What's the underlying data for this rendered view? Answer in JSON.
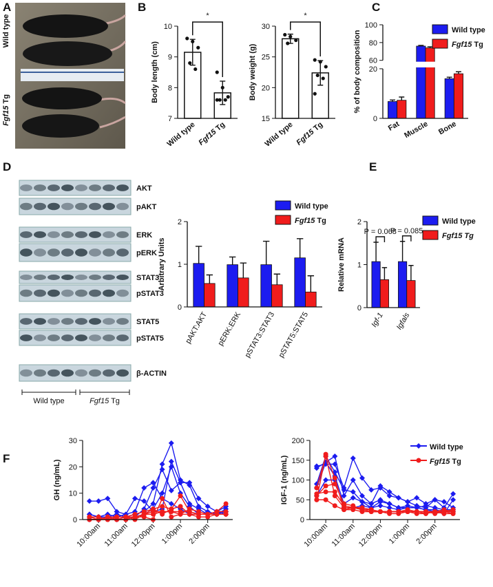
{
  "panels": [
    "A",
    "B",
    "C",
    "D",
    "E",
    "F"
  ],
  "photo": {
    "labels": [
      "Wild type",
      "Fgf15 Tg"
    ]
  },
  "blot": {
    "labels": [
      "AKT",
      "pAKT",
      "ERK",
      "pERK",
      "STAT3",
      "pSTAT3",
      "STAT5",
      "pSTAT5",
      "β-ACTIN"
    ],
    "groups": [
      "Wild type",
      "Fgf15 Tg"
    ]
  },
  "chart_data": [
    {
      "type": "bar",
      "ylabel": "Body length (cm)",
      "categories": [
        "Wild type",
        "Fgf15 Tg"
      ],
      "values": [
        9.15,
        7.83
      ],
      "errors": [
        0.42,
        0.38
      ],
      "points": [
        [
          9.6,
          9.5,
          9.3,
          8.8,
          8.6
        ],
        [
          8.5,
          8.0,
          7.7,
          7.6,
          7.6,
          7.6
        ]
      ],
      "color": "#ffffff",
      "ylim": [
        7,
        10
      ],
      "yticks": [
        7,
        8,
        9,
        10
      ],
      "significance": "*"
    },
    {
      "type": "bar",
      "ylabel": "Body weight (g)",
      "categories": [
        "Wild type",
        "Fgf15 Tg"
      ],
      "values": [
        27.95,
        22.4
      ],
      "errors": [
        0.75,
        2.0
      ],
      "points": [
        [
          28.6,
          28.3,
          27.7,
          27.2
        ],
        [
          24.5,
          24.2,
          23.4,
          22,
          21.5,
          19
        ]
      ],
      "color": "#ffffff",
      "ylim": [
        15,
        30
      ],
      "yticks": [
        15,
        20,
        25,
        30
      ],
      "significance": "*"
    },
    {
      "type": "bar",
      "ylabel": "% of body composition",
      "categories": [
        "Fat",
        "Muscle",
        "Bone"
      ],
      "series": [
        {
          "name": "Wild type",
          "color": "#1c1cf0",
          "values": [
            6.8,
            76,
            16
          ],
          "errors": [
            0.6,
            0.8,
            0.6
          ]
        },
        {
          "name": "Fgf15 Tg",
          "color": "#f01c1c",
          "values": [
            7.3,
            74,
            18
          ],
          "errors": [
            1.3,
            1.3,
            0.8
          ]
        }
      ],
      "ylim": [
        0,
        100
      ],
      "ybreak": [
        20,
        60
      ],
      "yticks": [
        0,
        20,
        60,
        80,
        100
      ],
      "legend": "top-right"
    },
    {
      "type": "bar",
      "ylabel": "Arbitrary Units",
      "categories": [
        "pAKT:AKT",
        "pERK:ERK",
        "pSTAT3:STAT3",
        "pSTAT5:STAT5"
      ],
      "series": [
        {
          "name": "Wild type",
          "color": "#1c1cf0",
          "values": [
            1.02,
            0.99,
            0.99,
            1.15
          ],
          "errors": [
            0.4,
            0.18,
            0.55,
            0.45
          ]
        },
        {
          "name": "Fgf15 Tg",
          "color": "#f01c1c",
          "values": [
            0.55,
            0.68,
            0.52,
            0.35
          ],
          "errors": [
            0.2,
            0.35,
            0.25,
            0.38
          ]
        }
      ],
      "ylim": [
        0,
        2
      ],
      "yticks": [
        0,
        1,
        2
      ],
      "legend": "top-right"
    },
    {
      "type": "bar",
      "ylabel": "Relative mRNA",
      "categories": [
        "Igf-1",
        "Igfals"
      ],
      "series": [
        {
          "name": "Wild type",
          "color": "#1c1cf0",
          "values": [
            1.07,
            1.07
          ],
          "errors": [
            0.45,
            0.47
          ]
        },
        {
          "name": "Fgf15 Tg",
          "color": "#f01c1c",
          "values": [
            0.65,
            0.63
          ],
          "errors": [
            0.28,
            0.35
          ]
        }
      ],
      "annotations": [
        "P = 0.068",
        "P = 0.085"
      ],
      "ylim": [
        0,
        2
      ],
      "yticks": [
        0,
        1,
        2
      ],
      "legend": "top-right"
    },
    {
      "type": "line",
      "ylabel": "GH (ng/mL)",
      "x": [
        580,
        600,
        620,
        640,
        660,
        680,
        700,
        720,
        740,
        760,
        780,
        800,
        820,
        840,
        860,
        880
      ],
      "xlim": [
        565,
        895
      ],
      "xticks": [
        {
          "value": 600,
          "label": "10:00am"
        },
        {
          "value": 660,
          "label": "11:00am"
        },
        {
          "value": 720,
          "label": "12:00pm"
        },
        {
          "value": 780,
          "label": "1:00pm"
        },
        {
          "value": 840,
          "label": "2:00pm"
        }
      ],
      "ylim": [
        0,
        30
      ],
      "yticks": [
        0,
        10,
        20,
        30
      ],
      "groups": [
        {
          "color": "#1c1cf0",
          "marker": "diamond",
          "animals": [
            [
              7,
              7,
              8,
              3,
              2,
              3,
              12,
              14,
              8,
              6,
              4,
              2,
              2,
              2,
              3,
              2
            ],
            [
              2,
              1,
              2,
              1,
              1,
              2,
              3,
              6,
              21,
              29,
              15,
              13,
              5,
              3,
              2,
              3
            ],
            [
              1,
              1,
              1,
              1,
              2,
              8,
              7,
              3,
              4,
              22,
              14,
              14,
              8,
              5,
              3,
              3
            ],
            [
              2,
              1,
              1,
              2,
              1,
              1,
              4,
              12,
              19,
              11,
              14,
              6,
              4,
              2,
              2,
              4
            ],
            [
              0,
              0,
              1,
              0,
              1,
              1,
              2,
              4,
              10,
              20,
              10,
              5,
              2,
              2,
              3,
              5
            ]
          ]
        },
        {
          "color": "#f01c1c",
          "marker": "circle",
          "animals": [
            [
              1,
              0,
              1,
              1,
              1,
              2,
              3,
              4,
              5,
              4,
              9,
              3,
              2,
              2,
              3,
              6
            ],
            [
              0,
              0,
              0,
              0,
              1,
              1,
              2,
              2,
              3,
              3,
              2,
              4,
              3,
              2,
              2,
              2
            ],
            [
              1,
              1,
              0,
              0,
              0,
              1,
              1,
              0,
              8,
              1,
              2,
              2,
              1,
              1,
              2,
              2
            ],
            [
              0,
              0,
              0,
              1,
              1,
              0,
              2,
              4,
              2,
              4,
              5,
              2,
              2,
              2,
              3,
              3
            ],
            [
              0,
              0,
              1,
              0,
              0,
              1,
              2,
              3,
              3,
              3,
              3,
              3,
              2,
              2,
              2,
              2
            ]
          ]
        }
      ]
    },
    {
      "type": "line",
      "ylabel": "IGF-1 (ng/mL)",
      "x": [
        580,
        600,
        620,
        640,
        660,
        680,
        700,
        720,
        740,
        760,
        780,
        800,
        820,
        840,
        860,
        880
      ],
      "xlim": [
        565,
        895
      ],
      "xticks": [
        {
          "value": 600,
          "label": "10:00am"
        },
        {
          "value": 660,
          "label": "11:00am"
        },
        {
          "value": 720,
          "label": "12:00pm"
        },
        {
          "value": 780,
          "label": "1:00pm"
        },
        {
          "value": 840,
          "label": "2:00pm"
        }
      ],
      "ylim": [
        0,
        200
      ],
      "yticks": [
        0,
        50,
        100,
        150,
        200
      ],
      "legend": "top-right",
      "groups": [
        {
          "name": "Wild type",
          "color": "#1c1cf0",
          "marker": "diamond",
          "animals": [
            [
              135,
              140,
              140,
              80,
              155,
              105,
              75,
              80,
              60,
              55,
              45,
              35,
              30,
              50,
              30,
              65
            ],
            [
              80,
              145,
              160,
              60,
              100,
              60,
              40,
              85,
              70,
              55,
              45,
              55,
              40,
              50,
              45,
              30
            ],
            [
              90,
              160,
              120,
              75,
              70,
              45,
              40,
              50,
              40,
              30,
              30,
              30,
              25,
              25,
              20,
              20
            ],
            [
              130,
              145,
              110,
              40,
              55,
              45,
              30,
              45,
              40,
              30,
              35,
              30,
              35,
              30,
              25,
              25
            ],
            [
              60,
              100,
              100,
              30,
              30,
              35,
              30,
              35,
              30,
              25,
              30,
              30,
              25,
              20,
              15,
              50
            ]
          ]
        },
        {
          "name": "Fgf15 Tg",
          "color": "#f01c1c",
          "marker": "circle",
          "animals": [
            [
              50,
              165,
              105,
              25,
              30,
              30,
              25,
              20,
              20,
              20,
              20,
              20,
              20,
              20,
              20,
              20
            ],
            [
              60,
              85,
              90,
              40,
              35,
              25,
              25,
              20,
              20,
              20,
              20,
              15,
              15,
              20,
              20,
              15
            ],
            [
              65,
              70,
              70,
              35,
              30,
              25,
              20,
              20,
              20,
              20,
              25,
              20,
              20,
              20,
              25,
              20
            ],
            [
              50,
              50,
              35,
              25,
              25,
              20,
              20,
              20,
              15,
              15,
              20,
              20,
              15,
              20,
              15,
              15
            ],
            [
              80,
              160,
              60,
              30,
              30,
              25,
              20,
              20,
              20,
              20,
              20,
              20,
              20,
              15,
              20,
              25
            ]
          ]
        }
      ]
    }
  ]
}
